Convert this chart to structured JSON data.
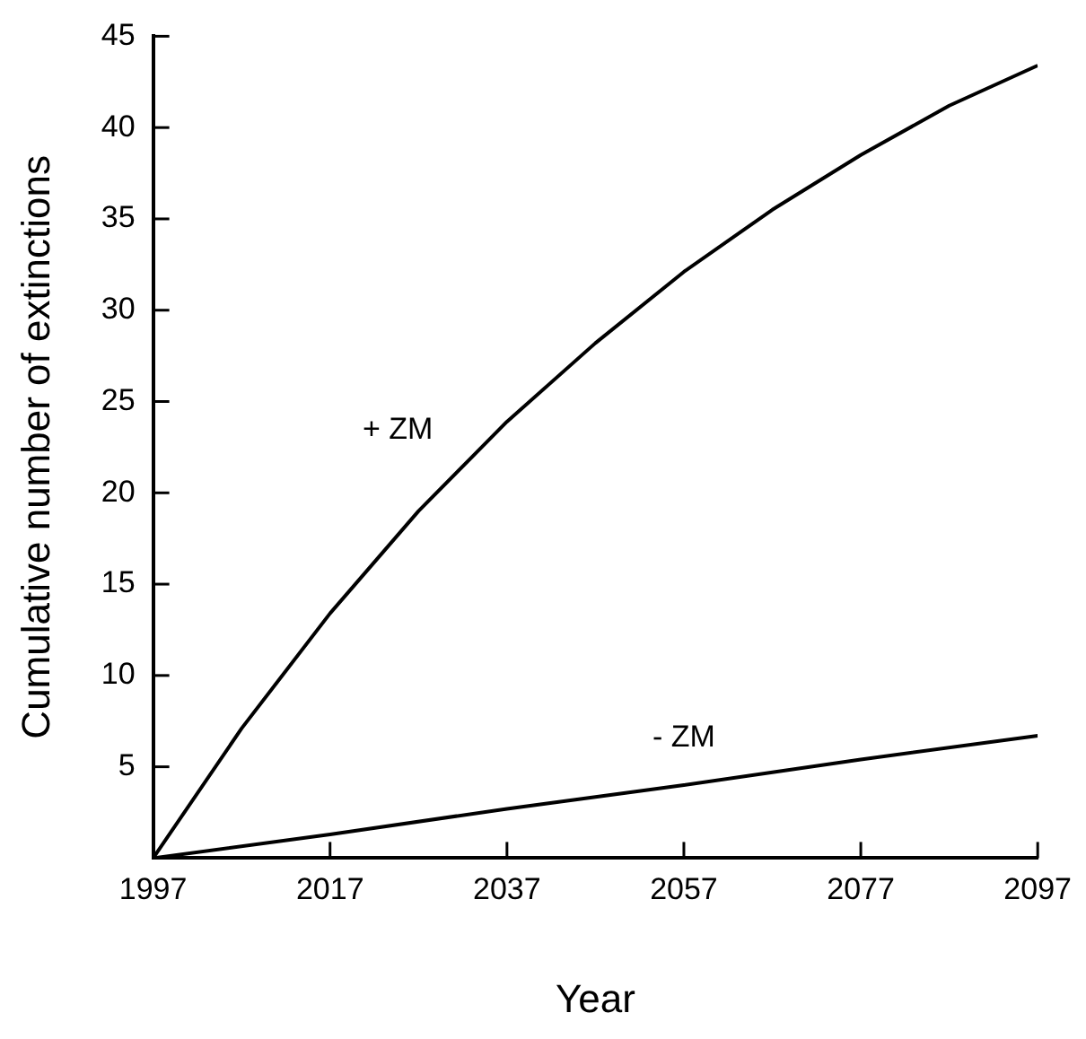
{
  "chart_data": {
    "type": "line",
    "xlabel": "Year",
    "ylabel": "Cumulative number of extinctions",
    "x": [
      1997,
      2007,
      2017,
      2027,
      2037,
      2047,
      2057,
      2067,
      2077,
      2087,
      2097
    ],
    "series": [
      {
        "name": "+ ZM",
        "color": "#000000",
        "values": [
          0,
          7.1,
          13.4,
          19.0,
          23.9,
          28.2,
          32.1,
          35.5,
          38.5,
          41.2,
          43.4
        ]
      },
      {
        "name": "- ZM",
        "color": "#000000",
        "x": [
          1997,
          2017,
          2037,
          2057,
          2077,
          2097
        ],
        "values": [
          0,
          1.3,
          2.7,
          4.0,
          5.4,
          6.7
        ]
      }
    ],
    "xlim": [
      1997,
      2097
    ],
    "xticks": [
      1997,
      2017,
      2037,
      2057,
      2077,
      2097
    ],
    "ylim": [
      0,
      45
    ],
    "yticks": [
      5,
      10,
      15,
      20,
      25,
      30,
      35,
      40,
      45
    ],
    "grid": false,
    "legend": false,
    "marker": "none",
    "line_style": "solid"
  }
}
